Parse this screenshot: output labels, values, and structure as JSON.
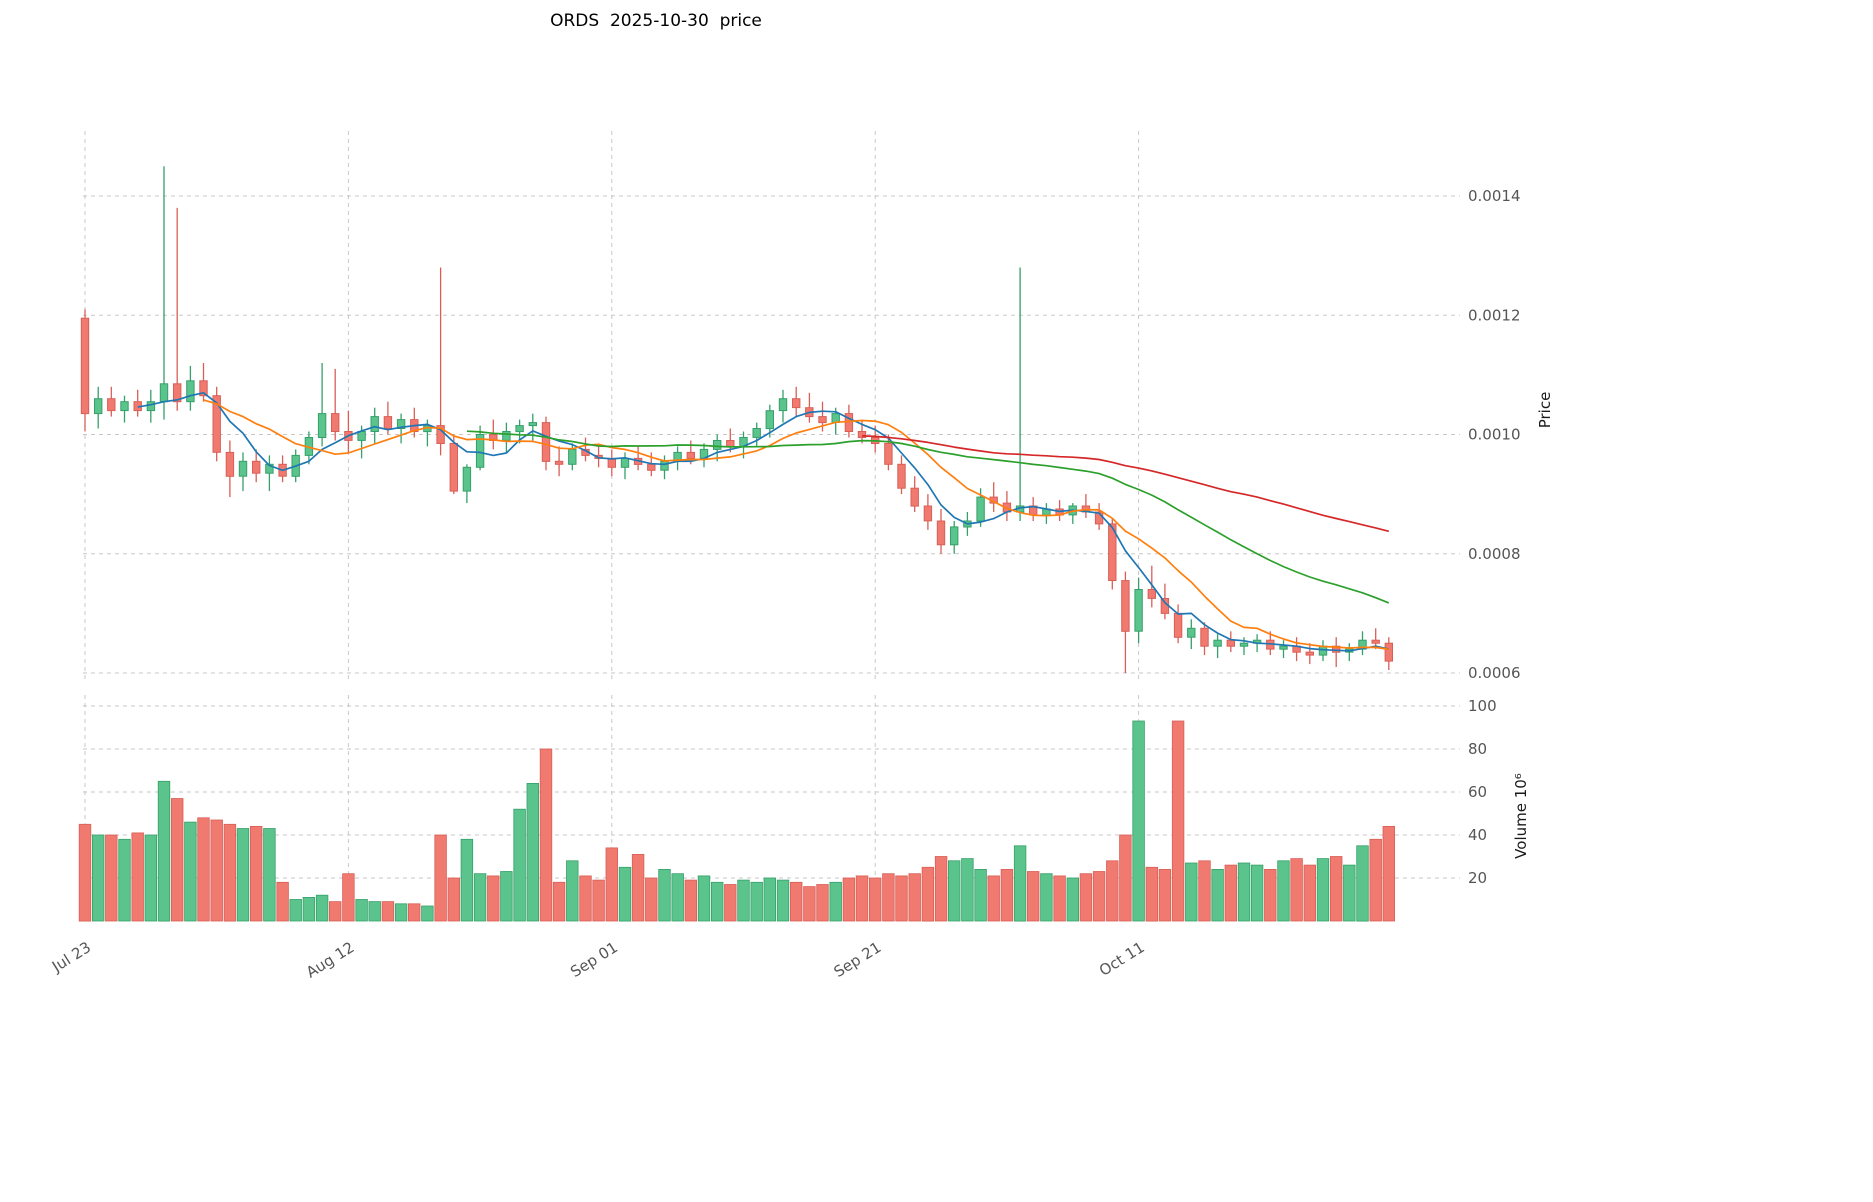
{
  "title": "ORDS  2025-10-30  price",
  "chart_data": {
    "type": "candlestick",
    "title": "ORDS  2025-10-30  price",
    "panels": [
      "price",
      "volume"
    ],
    "grid": "dashed",
    "legend": "none",
    "x_ticks": [
      {
        "label": "Jul 23",
        "index": 0
      },
      {
        "label": "Aug 12",
        "index": 20
      },
      {
        "label": "Sep 01",
        "index": 40
      },
      {
        "label": "Sep 21",
        "index": 60
      },
      {
        "label": "Oct 11",
        "index": 80
      }
    ],
    "price_axis": {
      "label": "Price",
      "side": "right",
      "ticks": [
        0.0006,
        0.0008,
        0.001,
        0.0012,
        0.0014
      ],
      "range": [
        0.000585,
        0.00151
      ]
    },
    "volume_axis": {
      "label": "Volume  10⁶",
      "side": "right",
      "ticks": [
        20,
        40,
        60,
        80,
        100
      ],
      "range": [
        0,
        105
      ]
    },
    "moving_averages": [
      {
        "window": 5,
        "color": "#1f77b4"
      },
      {
        "window": 10,
        "color": "#ff7f0e"
      },
      {
        "window": 30,
        "color": "#2ca02c"
      },
      {
        "window": 60,
        "color": "#d62728"
      }
    ],
    "colors": {
      "up": "#5bc48c",
      "down": "#f07a70",
      "up_edge": "#35a06a",
      "down_edge": "#d95f56",
      "grid": "#c2c2c2",
      "tick": "#555555",
      "background": "#ffffff"
    },
    "ohlc": [
      [
        0.001195,
        0.00121,
        0.001005,
        0.001035
      ],
      [
        0.001035,
        0.00108,
        0.00101,
        0.00106
      ],
      [
        0.00106,
        0.00108,
        0.00103,
        0.00104
      ],
      [
        0.00104,
        0.001065,
        0.00102,
        0.001055
      ],
      [
        0.001055,
        0.001075,
        0.00103,
        0.00104
      ],
      [
        0.00104,
        0.001075,
        0.00102,
        0.001055
      ],
      [
        0.001055,
        0.00145,
        0.001025,
        0.001085
      ],
      [
        0.001085,
        0.00138,
        0.00104,
        0.001055
      ],
      [
        0.001055,
        0.001115,
        0.00104,
        0.00109
      ],
      [
        0.00109,
        0.00112,
        0.001055,
        0.001065
      ],
      [
        0.001065,
        0.00108,
        0.000955,
        0.00097
      ],
      [
        0.00097,
        0.00099,
        0.000895,
        0.00093
      ],
      [
        0.00093,
        0.00097,
        0.000905,
        0.000955
      ],
      [
        0.000955,
        0.000975,
        0.00092,
        0.000935
      ],
      [
        0.000935,
        0.000965,
        0.000905,
        0.00095
      ],
      [
        0.00095,
        0.000965,
        0.00092,
        0.00093
      ],
      [
        0.00093,
        0.000975,
        0.00092,
        0.000965
      ],
      [
        0.000965,
        0.001005,
        0.00095,
        0.000995
      ],
      [
        0.000995,
        0.00112,
        0.00098,
        0.001035
      ],
      [
        0.001035,
        0.00111,
        0.00099,
        0.001005
      ],
      [
        0.001005,
        0.00104,
        0.00097,
        0.00099
      ],
      [
        0.00099,
        0.001015,
        0.00096,
        0.001005
      ],
      [
        0.001005,
        0.001045,
        0.000985,
        0.00103
      ],
      [
        0.00103,
        0.001055,
        0.001,
        0.00101
      ],
      [
        0.00101,
        0.001035,
        0.000985,
        0.001025
      ],
      [
        0.001025,
        0.001045,
        0.000995,
        0.001005
      ],
      [
        0.001005,
        0.001025,
        0.00098,
        0.001015
      ],
      [
        0.001015,
        0.00128,
        0.000965,
        0.000985
      ],
      [
        0.000985,
        0.001,
        0.0009,
        0.000905
      ],
      [
        0.000905,
        0.00095,
        0.000885,
        0.000945
      ],
      [
        0.000945,
        0.001015,
        0.00094,
        0.001
      ],
      [
        0.001,
        0.001025,
        0.000975,
        0.00099
      ],
      [
        0.00099,
        0.00102,
        0.00097,
        0.001005
      ],
      [
        0.001005,
        0.001025,
        0.000985,
        0.001015
      ],
      [
        0.001015,
        0.001035,
        0.00099,
        0.00102
      ],
      [
        0.00102,
        0.00103,
        0.00094,
        0.000955
      ],
      [
        0.000955,
        0.00098,
        0.00093,
        0.00095
      ],
      [
        0.00095,
        0.000985,
        0.00094,
        0.000975
      ],
      [
        0.000975,
        0.000995,
        0.000955,
        0.000965
      ],
      [
        0.000965,
        0.000985,
        0.000945,
        0.00096
      ],
      [
        0.00096,
        0.000975,
        0.00093,
        0.000945
      ],
      [
        0.000945,
        0.00097,
        0.000925,
        0.00096
      ],
      [
        0.00096,
        0.00098,
        0.00094,
        0.00095
      ],
      [
        0.00095,
        0.00097,
        0.00093,
        0.00094
      ],
      [
        0.00094,
        0.000965,
        0.000925,
        0.000955
      ],
      [
        0.000955,
        0.00098,
        0.00094,
        0.00097
      ],
      [
        0.00097,
        0.00099,
        0.00095,
        0.00096
      ],
      [
        0.00096,
        0.000985,
        0.000945,
        0.000975
      ],
      [
        0.000975,
        0.001,
        0.000955,
        0.00099
      ],
      [
        0.00099,
        0.00101,
        0.00097,
        0.00098
      ],
      [
        0.00098,
        0.001005,
        0.00096,
        0.000995
      ],
      [
        0.000995,
        0.00102,
        0.00098,
        0.00101
      ],
      [
        0.00101,
        0.00105,
        0.000995,
        0.00104
      ],
      [
        0.00104,
        0.001075,
        0.00102,
        0.00106
      ],
      [
        0.00106,
        0.00108,
        0.00103,
        0.001045
      ],
      [
        0.001045,
        0.00107,
        0.00102,
        0.00103
      ],
      [
        0.00103,
        0.001055,
        0.001005,
        0.00102
      ],
      [
        0.00102,
        0.001045,
        0.001,
        0.001035
      ],
      [
        0.001035,
        0.00105,
        0.000995,
        0.001005
      ],
      [
        0.001005,
        0.001025,
        0.000985,
        0.000995
      ],
      [
        0.000995,
        0.001015,
        0.00097,
        0.000985
      ],
      [
        0.000985,
        0.001,
        0.00094,
        0.00095
      ],
      [
        0.00095,
        0.000965,
        0.0009,
        0.00091
      ],
      [
        0.00091,
        0.00093,
        0.00087,
        0.00088
      ],
      [
        0.00088,
        0.0009,
        0.00084,
        0.000855
      ],
      [
        0.000855,
        0.000875,
        0.0008,
        0.000815
      ],
      [
        0.000815,
        0.000855,
        0.0008,
        0.000845
      ],
      [
        0.000845,
        0.00087,
        0.00083,
        0.000855
      ],
      [
        0.000855,
        0.00091,
        0.000845,
        0.000895
      ],
      [
        0.000895,
        0.00092,
        0.00087,
        0.000885
      ],
      [
        0.000885,
        0.000905,
        0.000855,
        0.00087
      ],
      [
        0.00087,
        0.00128,
        0.000855,
        0.00088
      ],
      [
        0.00088,
        0.000895,
        0.000855,
        0.000865
      ],
      [
        0.000865,
        0.000885,
        0.00085,
        0.000875
      ],
      [
        0.000875,
        0.00089,
        0.000855,
        0.000865
      ],
      [
        0.000865,
        0.000885,
        0.00085,
        0.00088
      ],
      [
        0.00088,
        0.0009,
        0.00086,
        0.00087
      ],
      [
        0.00087,
        0.000885,
        0.00084,
        0.00085
      ],
      [
        0.00085,
        0.00086,
        0.00074,
        0.000755
      ],
      [
        0.000755,
        0.00077,
        0.0006,
        0.00067
      ],
      [
        0.00067,
        0.00076,
        0.00065,
        0.00074
      ],
      [
        0.00074,
        0.00078,
        0.00071,
        0.000725
      ],
      [
        0.000725,
        0.00075,
        0.00069,
        0.0007
      ],
      [
        0.0007,
        0.000715,
        0.00065,
        0.00066
      ],
      [
        0.00066,
        0.00069,
        0.00064,
        0.000675
      ],
      [
        0.000675,
        0.000685,
        0.00063,
        0.000645
      ],
      [
        0.000645,
        0.000665,
        0.000625,
        0.000655
      ],
      [
        0.000655,
        0.00067,
        0.000635,
        0.000645
      ],
      [
        0.000645,
        0.00066,
        0.00063,
        0.00065
      ],
      [
        0.00065,
        0.000665,
        0.000635,
        0.000655
      ],
      [
        0.000655,
        0.00067,
        0.00063,
        0.00064
      ],
      [
        0.00064,
        0.000655,
        0.000625,
        0.000645
      ],
      [
        0.000645,
        0.00066,
        0.00062,
        0.000635
      ],
      [
        0.000635,
        0.00065,
        0.000615,
        0.00063
      ],
      [
        0.00063,
        0.000655,
        0.00062,
        0.000645
      ],
      [
        0.000645,
        0.00066,
        0.00061,
        0.000635
      ],
      [
        0.000635,
        0.00065,
        0.00062,
        0.00064
      ],
      [
        0.00064,
        0.00067,
        0.00063,
        0.000655
      ],
      [
        0.000655,
        0.000675,
        0.00064,
        0.00065
      ],
      [
        0.00065,
        0.00066,
        0.000605,
        0.00062
      ]
    ],
    "volume": [
      45,
      40,
      40,
      38,
      41,
      40,
      65,
      57,
      46,
      48,
      47,
      45,
      43,
      44,
      43,
      18,
      10,
      11,
      12,
      9,
      22,
      10,
      9,
      9,
      8,
      8,
      7,
      40,
      20,
      38,
      22,
      21,
      23,
      52,
      64,
      80,
      18,
      28,
      21,
      19,
      34,
      25,
      31,
      20,
      24,
      22,
      19,
      21,
      18,
      17,
      19,
      18,
      20,
      19,
      18,
      16,
      17,
      18,
      20,
      21,
      20,
      22,
      21,
      22,
      25,
      30,
      28,
      29,
      24,
      21,
      24,
      35,
      23,
      22,
      21,
      20,
      22,
      23,
      28,
      40,
      93,
      25,
      24,
      93,
      27,
      28,
      24,
      26,
      27,
      26,
      24,
      28,
      29,
      26,
      29,
      30,
      26,
      35,
      38,
      44
    ]
  }
}
